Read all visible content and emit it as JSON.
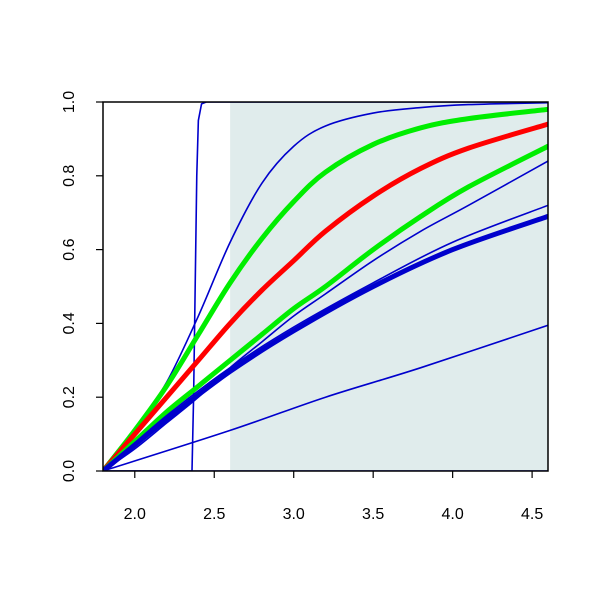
{
  "chart_data": {
    "type": "line",
    "title": "",
    "xlabel": "",
    "ylabel": "",
    "xlim": [
      1.8,
      4.6
    ],
    "ylim": [
      0.0,
      1.0
    ],
    "x_ticks": [
      2.0,
      2.5,
      3.0,
      3.5,
      4.0,
      4.5
    ],
    "x_tick_labels": [
      "2.0",
      "2.5",
      "3.0",
      "3.5",
      "4.0",
      "4.5"
    ],
    "y_ticks": [
      0.0,
      0.2,
      0.4,
      0.6,
      0.8,
      1.0
    ],
    "y_tick_labels": [
      "0.0",
      "0.2",
      "0.4",
      "0.6",
      "0.8",
      "1.0"
    ],
    "grid": false,
    "legend": "none",
    "shaded_region": {
      "x": [
        2.6,
        4.6
      ],
      "y": [
        0.0,
        1.0
      ],
      "color": "#e0ecec"
    },
    "series": [
      {
        "color": "#0000cc",
        "weight": "thin",
        "x": [
          1.8,
          2.36,
          2.37,
          2.38,
          2.39,
          2.4,
          2.42,
          2.45,
          2.6,
          4.6
        ],
        "y": [
          0.0,
          0.0,
          0.2,
          0.5,
          0.8,
          0.95,
          0.995,
          1.0,
          1.0,
          1.0
        ]
      },
      {
        "color": "#0000cc",
        "weight": "thin",
        "x": [
          1.8,
          2.0,
          2.2,
          2.4,
          2.6,
          2.8,
          3.0,
          3.2,
          3.5,
          3.8,
          4.1,
          4.6
        ],
        "y": [
          0.0,
          0.11,
          0.24,
          0.42,
          0.62,
          0.78,
          0.88,
          0.935,
          0.97,
          0.985,
          0.993,
          0.998
        ]
      },
      {
        "color": "#00ee00",
        "weight": "thick",
        "x": [
          1.8,
          2.0,
          2.2,
          2.4,
          2.6,
          2.8,
          3.0,
          3.2,
          3.5,
          3.8,
          4.1,
          4.6
        ],
        "y": [
          0.0,
          0.11,
          0.23,
          0.37,
          0.51,
          0.63,
          0.73,
          0.81,
          0.885,
          0.93,
          0.955,
          0.98
        ]
      },
      {
        "color": "#ff0000",
        "weight": "thick",
        "x": [
          1.8,
          2.0,
          2.2,
          2.4,
          2.6,
          2.8,
          3.0,
          3.2,
          3.5,
          3.8,
          4.1,
          4.6
        ],
        "y": [
          0.0,
          0.1,
          0.2,
          0.3,
          0.4,
          0.49,
          0.57,
          0.65,
          0.745,
          0.82,
          0.875,
          0.94
        ]
      },
      {
        "color": "#00ee00",
        "weight": "thick",
        "x": [
          1.8,
          2.0,
          2.2,
          2.4,
          2.6,
          2.8,
          3.0,
          3.2,
          3.5,
          3.8,
          4.1,
          4.6
        ],
        "y": [
          0.0,
          0.08,
          0.16,
          0.23,
          0.3,
          0.37,
          0.44,
          0.5,
          0.6,
          0.69,
          0.77,
          0.88
        ]
      },
      {
        "color": "#0000cc",
        "weight": "thin",
        "x": [
          1.8,
          2.0,
          2.2,
          2.4,
          2.6,
          2.8,
          3.0,
          3.2,
          3.5,
          3.8,
          4.1,
          4.6
        ],
        "y": [
          0.0,
          0.06,
          0.13,
          0.2,
          0.28,
          0.35,
          0.42,
          0.48,
          0.57,
          0.65,
          0.72,
          0.84
        ]
      },
      {
        "color": "#0000cc",
        "weight": "thin",
        "x": [
          1.8,
          2.2,
          2.6,
          3.0,
          3.5,
          4.0,
          4.6
        ],
        "y": [
          0.0,
          0.15,
          0.28,
          0.39,
          0.51,
          0.62,
          0.72
        ]
      },
      {
        "color": "#0000cc",
        "weight": "thick",
        "x": [
          1.8,
          2.2,
          2.6,
          3.0,
          3.5,
          4.0,
          4.6
        ],
        "y": [
          0.0,
          0.14,
          0.27,
          0.38,
          0.5,
          0.6,
          0.69
        ]
      },
      {
        "color": "#0000cc",
        "weight": "thin",
        "x": [
          1.8,
          2.6,
          3.2,
          3.8,
          4.6
        ],
        "y": [
          0.0,
          0.11,
          0.2,
          0.28,
          0.395
        ]
      },
      {
        "color": "#0000cc",
        "weight": "thin",
        "x": [
          1.8,
          4.6
        ],
        "y": [
          0.0,
          0.0
        ]
      }
    ]
  }
}
